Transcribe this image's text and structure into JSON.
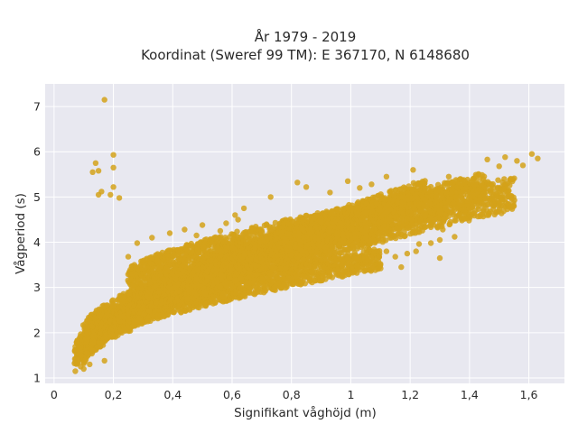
{
  "chart_data": {
    "type": "scatter",
    "title_line1": "År 1979 - 2019",
    "title_line2": "Koordinat (Sweref 99 TM): E 367170, N 6148680",
    "xlabel": "Signifikant våghöjd (m)",
    "ylabel": "Vågperiod (s)",
    "xlim": [
      -0.03,
      1.72
    ],
    "ylim": [
      0.88,
      7.5
    ],
    "x_ticks": [
      0,
      0.2,
      0.4,
      0.6,
      0.8,
      1,
      1.2,
      1.4,
      1.6
    ],
    "x_tick_labels": [
      "0",
      "0,2",
      "0,4",
      "0,6",
      "0,8",
      "1",
      "1,2",
      "1,4",
      "1,6"
    ],
    "y_ticks": [
      1,
      2,
      3,
      4,
      5,
      6,
      7
    ],
    "y_tick_labels": [
      "1",
      "2",
      "3",
      "4",
      "5",
      "6",
      "7"
    ],
    "grid": true,
    "background_color": "#e8e8f0",
    "point_color": "#d4a21a",
    "bands": [
      {
        "x_start": 0.07,
        "x_end": 1.25,
        "y_low_start": 1.15,
        "y_low_end": 4.8,
        "y_high_start": 1.75,
        "y_high_end": 5.4
      },
      {
        "x_start": 0.1,
        "x_end": 1.45,
        "y_low_start": 1.3,
        "y_low_end": 4.85,
        "y_high_start": 2.2,
        "y_high_end": 5.55
      },
      {
        "x_start": 0.25,
        "x_end": 1.55,
        "y_low_start": 1.95,
        "y_low_end": 4.7,
        "y_high_start": 3.4,
        "y_high_end": 5.45
      },
      {
        "x_start": 0.15,
        "x_end": 1.1,
        "y_low_start": 1.75,
        "y_low_end": 3.4,
        "y_high_start": 2.05,
        "y_high_end": 3.9
      }
    ],
    "points": [
      [
        0.17,
        7.15
      ],
      [
        0.14,
        5.75
      ],
      [
        0.15,
        5.58
      ],
      [
        0.13,
        5.55
      ],
      [
        0.2,
        5.93
      ],
      [
        0.2,
        5.65
      ],
      [
        0.2,
        5.22
      ],
      [
        0.16,
        5.12
      ],
      [
        0.15,
        5.05
      ],
      [
        0.22,
        4.98
      ],
      [
        0.19,
        5.05
      ],
      [
        1.63,
        5.85
      ],
      [
        1.61,
        5.95
      ],
      [
        1.56,
        5.8
      ],
      [
        1.52,
        5.88
      ],
      [
        1.5,
        5.68
      ],
      [
        1.46,
        5.83
      ],
      [
        1.58,
        5.7
      ],
      [
        1.55,
        4.8
      ],
      [
        1.5,
        4.85
      ],
      [
        1.47,
        4.68
      ],
      [
        1.41,
        4.62
      ],
      [
        1.38,
        4.72
      ],
      [
        1.35,
        4.12
      ],
      [
        1.3,
        4.05
      ],
      [
        1.31,
        4.28
      ],
      [
        1.28,
        4.48
      ],
      [
        1.25,
        4.58
      ],
      [
        1.27,
        3.98
      ],
      [
        1.22,
        3.8
      ],
      [
        1.19,
        3.75
      ],
      [
        1.17,
        3.45
      ],
      [
        1.15,
        3.68
      ],
      [
        1.1,
        3.52
      ],
      [
        1.07,
        3.65
      ],
      [
        1.3,
        3.65
      ],
      [
        1.35,
        4.48
      ],
      [
        1.23,
        3.96
      ],
      [
        1.12,
        3.8
      ],
      [
        0.97,
        3.48
      ],
      [
        0.93,
        3.6
      ],
      [
        1.02,
        3.62
      ],
      [
        0.73,
        3.28
      ],
      [
        0.66,
        3.1
      ],
      [
        0.58,
        3.05
      ],
      [
        0.51,
        2.85
      ],
      [
        0.99,
        3.85
      ],
      [
        0.9,
        3.6
      ],
      [
        0.87,
        3.35
      ],
      [
        0.84,
        3.62
      ],
      [
        0.78,
        3.42
      ],
      [
        0.68,
        3.48
      ],
      [
        0.63,
        3.2
      ],
      [
        0.55,
        3.12
      ],
      [
        0.48,
        3.18
      ],
      [
        0.74,
        2.95
      ],
      [
        0.8,
        3.72
      ],
      [
        0.96,
        3.95
      ],
      [
        1.05,
        4.1
      ],
      [
        0.99,
        5.35
      ],
      [
        1.03,
        5.2
      ],
      [
        1.07,
        5.28
      ],
      [
        1.21,
        5.6
      ],
      [
        1.12,
        5.45
      ],
      [
        0.93,
        5.1
      ],
      [
        0.85,
        5.22
      ],
      [
        0.82,
        5.32
      ],
      [
        0.73,
        5.0
      ],
      [
        0.64,
        4.75
      ],
      [
        0.61,
        4.6
      ],
      [
        0.58,
        4.42
      ],
      [
        0.5,
        4.38
      ],
      [
        0.44,
        4.28
      ],
      [
        0.39,
        4.2
      ],
      [
        0.33,
        4.1
      ],
      [
        0.28,
        3.98
      ],
      [
        0.25,
        3.68
      ],
      [
        0.62,
        4.5
      ],
      [
        0.56,
        4.25
      ],
      [
        0.48,
        4.15
      ],
      [
        0.09,
        1.25
      ],
      [
        0.08,
        1.35
      ],
      [
        0.07,
        1.42
      ],
      [
        0.1,
        1.2
      ],
      [
        0.12,
        1.3
      ],
      [
        0.11,
        1.55
      ],
      [
        0.09,
        1.5
      ],
      [
        0.17,
        1.38
      ],
      [
        0.13,
        1.6
      ],
      [
        0.27,
        2.25
      ],
      [
        0.32,
        2.48
      ],
      [
        0.24,
        2.05
      ],
      [
        0.45,
        2.75
      ],
      [
        0.9,
        4.45
      ],
      [
        1.05,
        4.65
      ],
      [
        1.4,
        5.0
      ],
      [
        1.25,
        5.2
      ],
      [
        1.33,
        5.45
      ],
      [
        1.44,
        5.3
      ]
    ]
  }
}
